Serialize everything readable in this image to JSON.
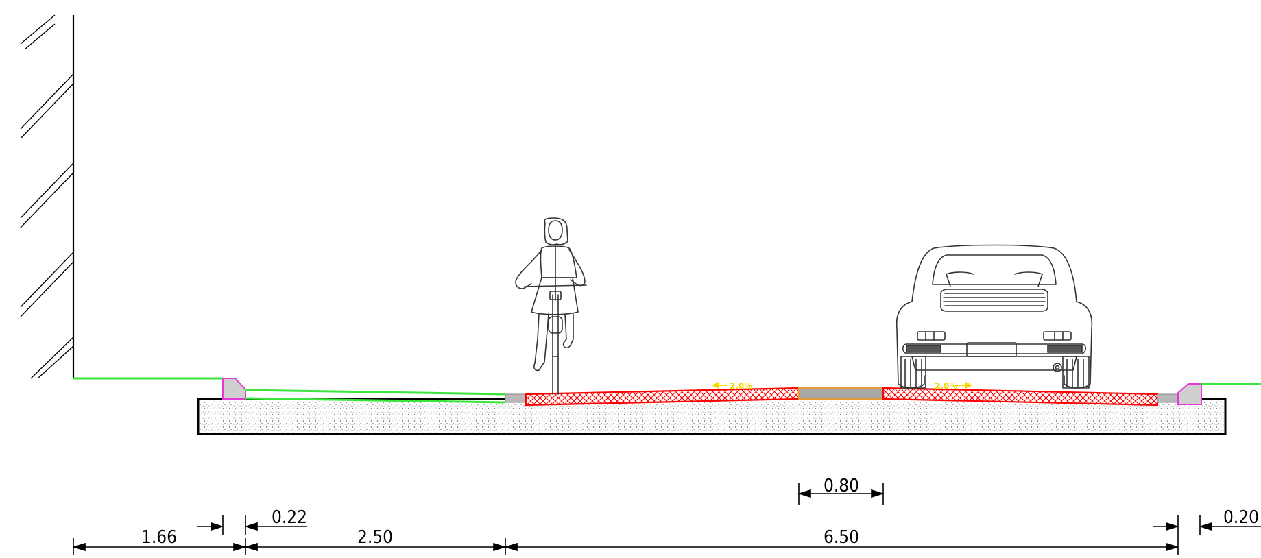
{
  "section": {
    "dimensions": {
      "left_verge": "1.66",
      "kerb_left": "0.22",
      "cycle_path": "2.50",
      "carriageway": "6.50",
      "median_strip": "0.80",
      "kerb_right": "0.20"
    },
    "slopes": {
      "left": "2.0%",
      "right": "2.0%"
    },
    "colors": {
      "grass": "#39e639",
      "kerb_outline": "#e23ad8",
      "kerb_fill": "#cfcfcf",
      "asphalt_hatch": "#ff0000",
      "median_fill": "#a8a8a8",
      "median_outline": "#e39b3a",
      "slope_label": "#f5d800",
      "base_outline": "#000000"
    },
    "figures": [
      "building-wall",
      "cyclist",
      "car"
    ]
  }
}
